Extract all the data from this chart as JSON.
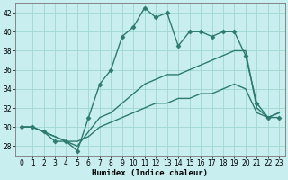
{
  "xlabel": "Humidex (Indice chaleur)",
  "bg_color": "#c8eef0",
  "line_color": "#2d7a6e",
  "grid_color": "#a0d8d0",
  "xlim": [
    -0.5,
    23.5
  ],
  "ylim": [
    27,
    43
  ],
  "xticks": [
    0,
    1,
    2,
    3,
    4,
    5,
    6,
    7,
    8,
    9,
    10,
    11,
    12,
    13,
    14,
    15,
    16,
    17,
    18,
    19,
    20,
    21,
    22,
    23
  ],
  "yticks": [
    28,
    30,
    32,
    34,
    36,
    38,
    40,
    42
  ],
  "lines": [
    {
      "x": [
        0,
        1,
        2,
        3,
        4,
        5,
        6,
        7,
        8,
        9,
        10,
        11,
        12,
        13,
        14,
        15,
        16,
        17,
        18,
        19,
        20,
        21,
        22,
        23
      ],
      "y": [
        30,
        30,
        29.5,
        28.5,
        28.5,
        27.5,
        31,
        34.5,
        36,
        39.5,
        40.5,
        42.5,
        41.5,
        42,
        38.5,
        40,
        40,
        39.5,
        40,
        40,
        37.5,
        32.5,
        31,
        31
      ],
      "marker": "D",
      "markersize": 2.5,
      "linewidth": 1.0,
      "linestyle": "-"
    },
    {
      "x": [
        0,
        1,
        2,
        3,
        4,
        5,
        6,
        7,
        8,
        9,
        10,
        11,
        12,
        13,
        14,
        15,
        16,
        17,
        18,
        19,
        20,
        21,
        22,
        23
      ],
      "y": [
        30,
        30,
        29.5,
        29,
        28.5,
        28.0,
        29.5,
        31.0,
        31.5,
        32.5,
        33.5,
        34.5,
        35.0,
        35.5,
        35.5,
        36.0,
        36.5,
        37.0,
        37.5,
        38.0,
        38.0,
        32.0,
        31.0,
        31.5
      ],
      "marker": null,
      "markersize": 0,
      "linewidth": 1.0,
      "linestyle": "-"
    },
    {
      "x": [
        0,
        1,
        2,
        3,
        4,
        5,
        6,
        7,
        8,
        9,
        10,
        11,
        12,
        13,
        14,
        15,
        16,
        17,
        18,
        19,
        20,
        21,
        22,
        23
      ],
      "y": [
        30,
        30,
        29.5,
        29,
        28.5,
        28.5,
        29.0,
        30.0,
        30.5,
        31.0,
        31.5,
        32.0,
        32.5,
        32.5,
        33.0,
        33.0,
        33.5,
        33.5,
        34.0,
        34.5,
        34.0,
        31.5,
        31.0,
        31.5
      ],
      "marker": null,
      "markersize": 0,
      "linewidth": 1.0,
      "linestyle": "-"
    }
  ]
}
